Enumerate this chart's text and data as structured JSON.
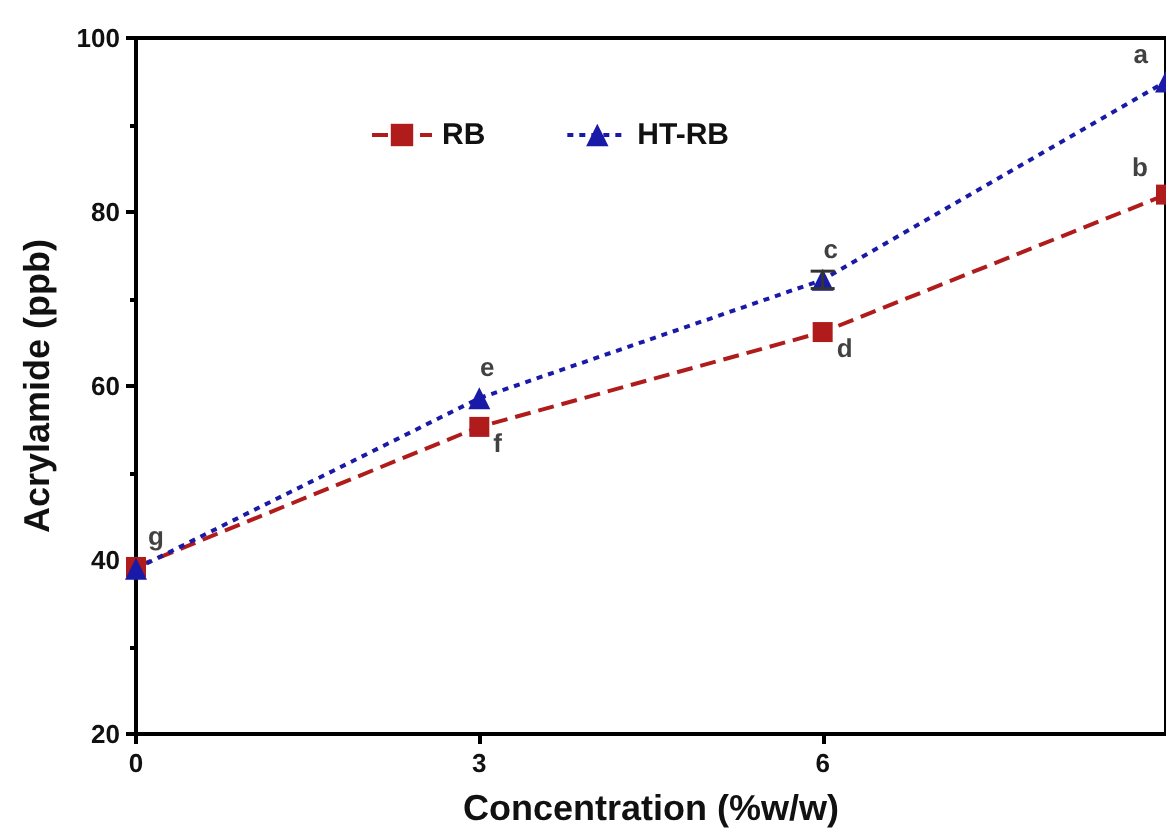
{
  "chart_data": {
    "type": "line",
    "xlabel": "Concentration (%w/w)",
    "ylabel": "Acrylamide (ppb)",
    "x": [
      0,
      3,
      6,
      9
    ],
    "series": [
      {
        "name": "RB",
        "color": "#b01c1c",
        "values": [
          39.2,
          55.3,
          66.2,
          82
        ],
        "marker": "square",
        "line_style": "dashed"
      },
      {
        "name": "HT-RB",
        "color": "#1a1aa8",
        "values": [
          39,
          58.6,
          72.2,
          95
        ],
        "errors": [
          null,
          null,
          1,
          null
        ],
        "marker": "triangle",
        "line_style": "dotted"
      }
    ],
    "xlim": [
      0,
      9
    ],
    "xticks": [
      0,
      3,
      6
    ],
    "ylim": [
      20,
      100
    ],
    "yticks": [
      20,
      40,
      60,
      80,
      100
    ],
    "grid": false,
    "legend": "top left",
    "annotations": [
      {
        "text": "g",
        "x": 0,
        "y": 39.2
      },
      {
        "text": "f",
        "x": 3,
        "y": 55.3
      },
      {
        "text": "e",
        "x": 3,
        "y": 58.6
      },
      {
        "text": "d",
        "x": 6,
        "y": 66.2
      },
      {
        "text": "c",
        "x": 6,
        "y": 72.2
      },
      {
        "text": "b",
        "x": 9,
        "y": 82
      },
      {
        "text": "a",
        "x": 9,
        "y": 95
      }
    ]
  }
}
